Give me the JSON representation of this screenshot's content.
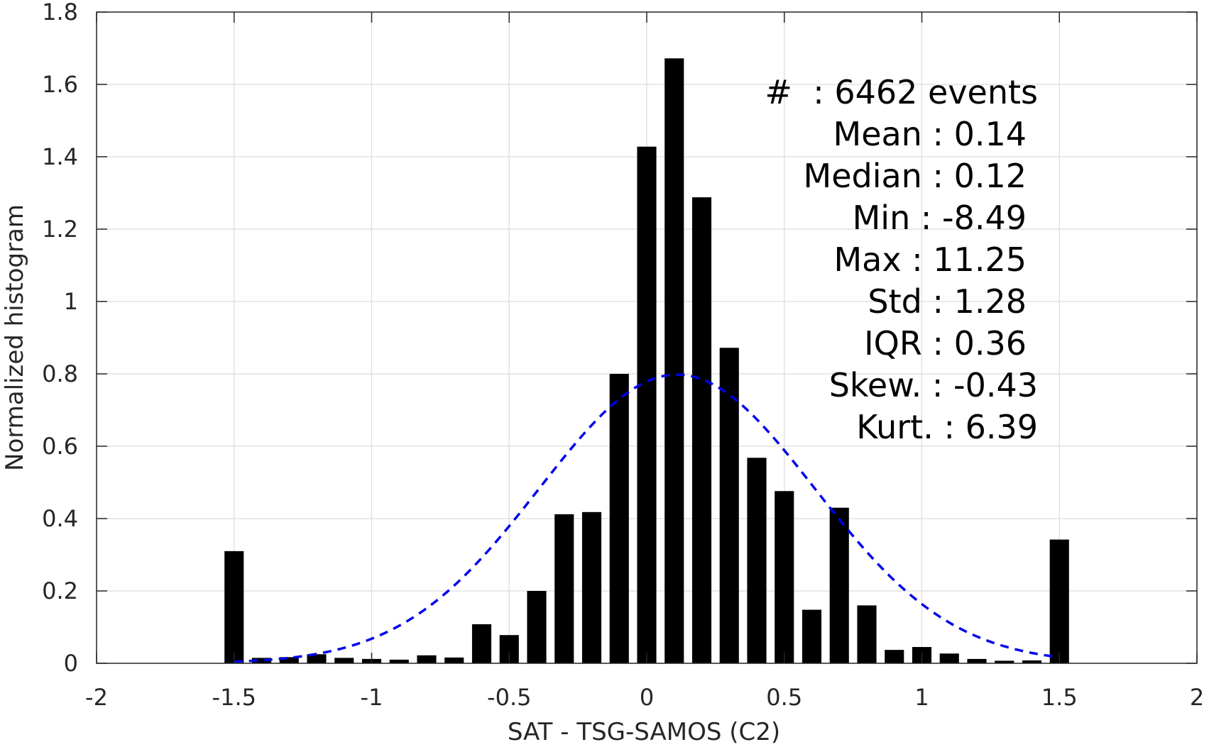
{
  "chart_data": {
    "type": "bar",
    "xlabel": "SAT - TSG-SAMOS (C2)",
    "ylabel": "Normalized histogram",
    "xlim": [
      -2,
      2
    ],
    "ylim": [
      0,
      1.8
    ],
    "x_ticks": [
      "-2",
      "-1.5",
      "-1",
      "-0.5",
      "0",
      "0.5",
      "1",
      "1.5",
      "2"
    ],
    "x_tick_values": [
      -2,
      -1.5,
      -1,
      -0.5,
      0,
      0.5,
      1,
      1.5,
      2
    ],
    "y_ticks": [
      "0",
      "0.2",
      "0.4",
      "0.6",
      "0.8",
      "1",
      "1.2",
      "1.4",
      "1.6",
      "1.8"
    ],
    "y_tick_values": [
      0,
      0.2,
      0.4,
      0.6,
      0.8,
      1.0,
      1.2,
      1.4,
      1.6,
      1.8
    ],
    "grid": true,
    "bar_color": "#000000",
    "bars": {
      "x": [
        -1.5,
        -1.4,
        -1.3,
        -1.2,
        -1.1,
        -1.0,
        -0.9,
        -0.8,
        -0.7,
        -0.6,
        -0.5,
        -0.4,
        -0.3,
        -0.2,
        -0.1,
        0.0,
        0.1,
        0.2,
        0.3,
        0.4,
        0.5,
        0.6,
        0.7,
        0.8,
        0.9,
        1.0,
        1.1,
        1.2,
        1.3,
        1.4,
        1.5
      ],
      "values": [
        0.31,
        0.015,
        0.017,
        0.025,
        0.015,
        0.012,
        0.01,
        0.022,
        0.016,
        0.108,
        0.078,
        0.2,
        0.412,
        0.418,
        0.8,
        1.428,
        1.672,
        1.288,
        0.872,
        0.568,
        0.476,
        0.148,
        0.43,
        0.16,
        0.037,
        0.045,
        0.027,
        0.012,
        0.007,
        0.008,
        0.342
      ]
    },
    "fit_curve": {
      "style": "dashed",
      "color": "#0000ee",
      "mean": 0.11,
      "std": 0.5,
      "x_range": [
        -1.5,
        1.5
      ]
    },
    "stats_lines": [
      "#  : 6462 events",
      "Mean : 0.14",
      "Median : 0.12",
      "Min : -8.49",
      "Max : 11.25",
      "Std : 1.28",
      "IQR : 0.36",
      "Skew. : -0.43",
      "Kurt. : 6.39"
    ]
  }
}
